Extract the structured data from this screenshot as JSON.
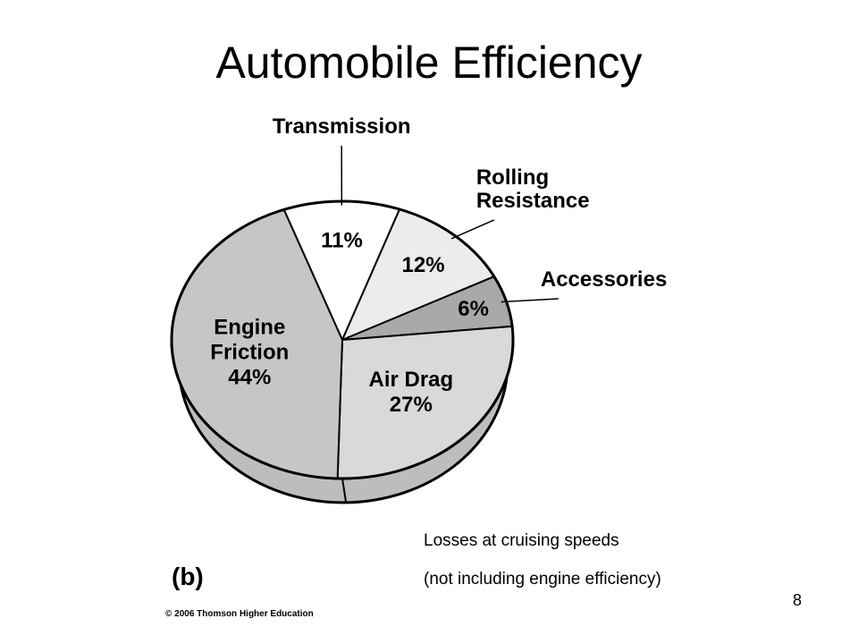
{
  "slide": {
    "title": "Automobile Efficiency",
    "caption_line1": "Losses at cruising speeds",
    "caption_line2": "(not including engine efficiency)",
    "figure_tag": "(b)",
    "copyright": "© 2006 Thomson Higher Education",
    "page_number": "8"
  },
  "chart_data": {
    "type": "pie",
    "title": "",
    "slices": [
      {
        "label_lines": [
          "Transmission"
        ],
        "value": 11,
        "value_label": "11%",
        "color": "#ffffff",
        "label_outside": true
      },
      {
        "label_lines": [
          "Rolling",
          "Resistance"
        ],
        "value": 12,
        "value_label": "12%",
        "color": "#ececec",
        "label_outside": true
      },
      {
        "label_lines": [
          "Accessories"
        ],
        "value": 6,
        "value_label": "6%",
        "color": "#a9a9a9",
        "label_outside": true
      },
      {
        "label_lines": [
          "Air Drag"
        ],
        "value": 27,
        "value_label": "27%",
        "color": "#d9d9d9",
        "label_outside": false
      },
      {
        "label_lines": [
          "Engine",
          "Friction"
        ],
        "value": 44,
        "value_label": "44%",
        "color": "#c6c6c6",
        "label_outside": false
      }
    ],
    "style": "3d-disc",
    "side_color": "#bdbdbd"
  }
}
